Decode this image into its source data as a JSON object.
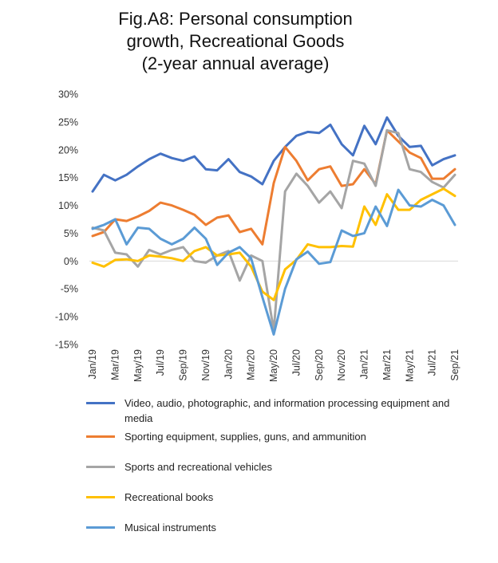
{
  "chart_data": {
    "type": "line",
    "title_lines": [
      "Fig.A8: Personal consumption",
      "growth, Recreational Goods",
      "(2-year annual average)"
    ],
    "y_ticks": [
      "30%",
      "25%",
      "20%",
      "15%",
      "10%",
      "5%",
      "0%",
      "-5%",
      "-10%",
      "-15%"
    ],
    "y_tick_values": [
      30,
      25,
      20,
      15,
      10,
      5,
      0,
      -5,
      -10,
      -15
    ],
    "ylim": [
      -15,
      30
    ],
    "x_tick_labels": [
      "Jan/19",
      "Mar/19",
      "May/19",
      "Jul/19",
      "Sep/19",
      "Nov/19",
      "Jan/20",
      "Mar/20",
      "May/20",
      "Jul/20",
      "Sep/20",
      "Nov/20",
      "Jan/21",
      "Mar/21",
      "May/21",
      "Jul/21",
      "Sep/21"
    ],
    "x": [
      "Jan/19",
      "Feb/19",
      "Mar/19",
      "Apr/19",
      "May/19",
      "Jun/19",
      "Jul/19",
      "Aug/19",
      "Sep/19",
      "Oct/19",
      "Nov/19",
      "Dec/19",
      "Jan/20",
      "Feb/20",
      "Mar/20",
      "Apr/20",
      "May/20",
      "Jun/20",
      "Jul/20",
      "Aug/20",
      "Sep/20",
      "Oct/20",
      "Nov/20",
      "Dec/20",
      "Jan/21",
      "Feb/21",
      "Mar/21",
      "Apr/21",
      "May/21",
      "Jun/21",
      "Jul/21",
      "Aug/21",
      "Sep/21"
    ],
    "grid": false,
    "legend_position": "bottom",
    "series": [
      {
        "name": "Video, audio, photographic, and information processing equipment and media",
        "color": "#4472C4",
        "values": [
          12.5,
          15.5,
          14.5,
          15.5,
          17.0,
          18.3,
          19.3,
          18.5,
          18.0,
          18.8,
          16.5,
          16.3,
          18.3,
          16.0,
          15.2,
          13.8,
          18.0,
          20.5,
          22.5,
          23.2,
          23.0,
          24.5,
          21.0,
          19.0,
          24.3,
          21.0,
          25.8,
          22.5,
          20.5,
          20.7,
          17.2,
          18.3,
          19.0
        ]
      },
      {
        "name": "Sporting equipment, supplies, guns, and ammunition",
        "color": "#ED7D31",
        "values": [
          4.5,
          5.2,
          7.5,
          7.2,
          8.0,
          9.0,
          10.5,
          10.0,
          9.2,
          8.3,
          6.5,
          7.8,
          8.2,
          5.2,
          5.8,
          3.0,
          14.0,
          20.5,
          18.0,
          14.5,
          16.5,
          17.0,
          13.5,
          13.8,
          16.5,
          13.8,
          23.5,
          21.5,
          19.5,
          18.5,
          14.8,
          14.8,
          16.5
        ]
      },
      {
        "name": "Sports and recreational vehicles",
        "color": "#A5A5A5",
        "values": [
          6.0,
          5.5,
          1.5,
          1.2,
          -1.0,
          2.0,
          1.2,
          2.0,
          2.5,
          0.0,
          -0.3,
          1.0,
          1.8,
          -3.5,
          1.0,
          0.0,
          -12.5,
          12.5,
          15.7,
          13.5,
          10.5,
          12.5,
          9.5,
          18.0,
          17.5,
          13.5,
          23.5,
          23.0,
          16.5,
          16.0,
          14.2,
          13.2,
          15.5
        ]
      },
      {
        "name": "Recreational books",
        "color": "#FFC000",
        "values": [
          -0.3,
          -1.0,
          0.2,
          0.3,
          0.0,
          1.0,
          0.8,
          0.5,
          0.0,
          1.8,
          2.5,
          1.0,
          1.2,
          1.5,
          -1.0,
          -5.5,
          -7.0,
          -1.5,
          0.2,
          3.0,
          2.5,
          2.5,
          2.7,
          2.6,
          9.8,
          6.5,
          12.0,
          9.2,
          9.2,
          11.0,
          12.0,
          13.0,
          11.7
        ]
      },
      {
        "name": "Musical instruments",
        "color": "#5B9BD5",
        "values": [
          5.8,
          6.5,
          7.5,
          3.0,
          6.0,
          5.8,
          4.0,
          3.0,
          4.0,
          6.0,
          4.0,
          -0.7,
          1.5,
          2.5,
          0.5,
          -6.5,
          -13.2,
          -5.0,
          0.3,
          1.7,
          -0.5,
          -0.2,
          5.5,
          4.5,
          5.0,
          9.8,
          6.3,
          12.8,
          10.0,
          9.8,
          11.0,
          10.0,
          6.5
        ]
      }
    ]
  }
}
